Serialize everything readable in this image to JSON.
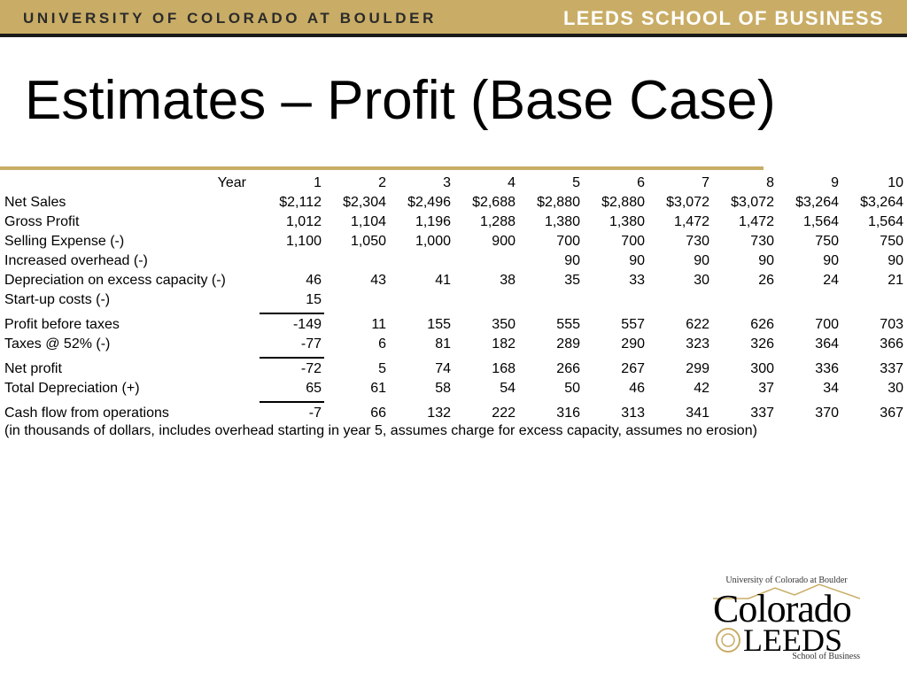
{
  "banner": {
    "left": "UNIVERSITY OF COLORADO AT BOULDER",
    "right": "LEEDS SCHOOL OF BUSINESS"
  },
  "title": "Estimates – Profit (Base Case)",
  "table": {
    "year_label": "Year",
    "years": [
      "1",
      "2",
      "3",
      "4",
      "5",
      "6",
      "7",
      "8",
      "9",
      "10"
    ],
    "rows": [
      {
        "label": "Net Sales",
        "values": [
          "$2,112",
          "$2,304",
          "$2,496",
          "$2,688",
          "$2,880",
          "$2,880",
          "$3,072",
          "$3,072",
          "$3,264",
          "$3,264"
        ]
      },
      {
        "label": "Gross Profit",
        "values": [
          "1,012",
          "1,104",
          "1,196",
          "1,288",
          "1,380",
          "1,380",
          "1,472",
          "1,472",
          "1,564",
          "1,564"
        ]
      },
      {
        "label": "Selling Expense (-)",
        "values": [
          "1,100",
          "1,050",
          "1,000",
          "900",
          "700",
          "700",
          "730",
          "730",
          "750",
          "750"
        ]
      },
      {
        "label": "Increased overhead (-)",
        "values": [
          "",
          "",
          "",
          "",
          "90",
          "90",
          "90",
          "90",
          "90",
          "90"
        ]
      },
      {
        "label": "Depreciation on excess capacity (-)",
        "values": [
          "46",
          "43",
          "41",
          "38",
          "35",
          "33",
          "30",
          "26",
          "24",
          "21"
        ]
      },
      {
        "label": "Start-up costs (-)",
        "values": [
          "15",
          "",
          "",
          "",
          "",
          "",
          "",
          "",
          "",
          ""
        ]
      },
      {
        "label": "Profit before taxes",
        "values": [
          "-149",
          "11",
          "155",
          "350",
          "555",
          "557",
          "622",
          "626",
          "700",
          "703"
        ]
      },
      {
        "label": "Taxes @ 52% (-)",
        "values": [
          "-77",
          "6",
          "81",
          "182",
          "289",
          "290",
          "323",
          "326",
          "364",
          "366"
        ]
      },
      {
        "label": "Net profit",
        "values": [
          "-72",
          "5",
          "74",
          "168",
          "266",
          "267",
          "299",
          "300",
          "336",
          "337"
        ]
      },
      {
        "label": "Total Depreciation (+)",
        "values": [
          "65",
          "61",
          "58",
          "54",
          "50",
          "46",
          "42",
          "37",
          "34",
          "30"
        ]
      },
      {
        "label": "Cash flow from operations",
        "values": [
          "-7",
          "66",
          "132",
          "222",
          "316",
          "313",
          "341",
          "337",
          "370",
          "367"
        ]
      }
    ],
    "note": "(in thousands of dollars, includes overhead starting in year 5, assumes charge for excess capacity, assumes no erosion)"
  },
  "logo": {
    "top_text": "University of Colorado at Boulder",
    "word1": "Colorado",
    "word2": "LEEDS",
    "bottom_text": "School of Business"
  },
  "colors": {
    "banner_gold": "#c9ad66",
    "banner_dark": "#1a1a1a"
  }
}
